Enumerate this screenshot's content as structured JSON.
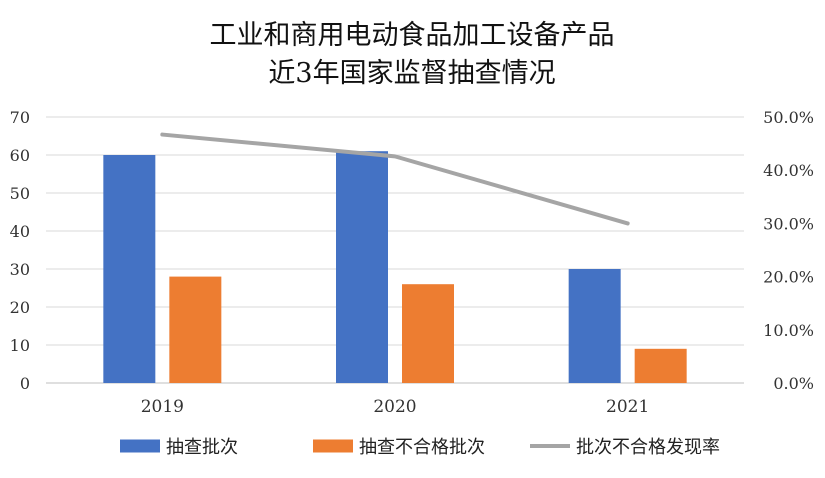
{
  "chart_data": {
    "type": "bar",
    "title_lines": [
      "工业和商用电动食品加工设备产品",
      "近3年国家监督抽查情况"
    ],
    "categories": [
      "2019",
      "2020",
      "2021"
    ],
    "series": [
      {
        "name": "抽查批次",
        "type": "bar",
        "axis": "left",
        "color": "#4472C4",
        "values": [
          60,
          61,
          30
        ]
      },
      {
        "name": "抽查不合格批次",
        "type": "bar",
        "axis": "left",
        "color": "#ED7D31",
        "values": [
          28,
          26,
          9
        ]
      },
      {
        "name": "批次不合格发现率",
        "type": "line",
        "axis": "right",
        "color": "#A5A5A5",
        "values": [
          46.7,
          42.6,
          30.0
        ]
      }
    ],
    "y_left": {
      "range": [
        0,
        70
      ],
      "ticks": [
        "0",
        "10",
        "20",
        "30",
        "40",
        "50",
        "60",
        "70"
      ]
    },
    "y_right": {
      "range": [
        0,
        50
      ],
      "ticks": [
        "0.0%",
        "10.0%",
        "20.0%",
        "30.0%",
        "40.0%",
        "50.0%"
      ]
    },
    "grid": true,
    "legend_position": "bottom"
  }
}
